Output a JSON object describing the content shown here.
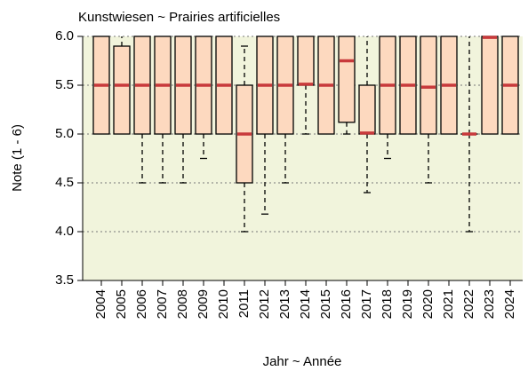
{
  "chart_data": {
    "type": "box",
    "title": "Kunstwiesen   ~   Prairies artificielles",
    "x_label": "Jahr   ~   Année",
    "y_label": "Note (1 - 6)",
    "categories": [
      "2004",
      "2005",
      "2006",
      "2007",
      "2008",
      "2009",
      "2010",
      "2011",
      "2012",
      "2013",
      "2014",
      "2015",
      "2016",
      "2017",
      "2018",
      "2019",
      "2020",
      "2021",
      "2022",
      "2023",
      "2024"
    ],
    "series": {
      "low": [
        5.0,
        5.0,
        4.5,
        4.5,
        4.5,
        4.75,
        5.0,
        4.0,
        4.18,
        4.5,
        5.0,
        5.0,
        5.0,
        4.4,
        4.75,
        5.0,
        4.5,
        5.0,
        4.0,
        5.0,
        5.0
      ],
      "q1": [
        5.0,
        5.0,
        5.0,
        5.0,
        5.0,
        5.0,
        5.0,
        4.5,
        5.0,
        5.0,
        5.5,
        5.0,
        5.12,
        5.0,
        5.0,
        5.0,
        5.0,
        5.0,
        5.0,
        5.0,
        5.0
      ],
      "median": [
        5.5,
        5.5,
        5.5,
        5.5,
        5.5,
        5.5,
        5.5,
        5.0,
        5.5,
        5.5,
        5.51,
        5.5,
        5.75,
        5.01,
        5.5,
        5.5,
        5.48,
        5.5,
        5.0,
        5.99,
        5.5
      ],
      "q3": [
        6.0,
        5.9,
        6.0,
        6.0,
        6.0,
        6.0,
        6.0,
        5.5,
        6.0,
        6.0,
        6.0,
        6.0,
        6.0,
        5.5,
        6.0,
        6.0,
        6.0,
        6.0,
        5.0,
        6.0,
        6.0
      ],
      "high": [
        6.0,
        6.0,
        6.0,
        6.0,
        6.0,
        6.0,
        6.0,
        5.9,
        6.0,
        6.0,
        6.0,
        6.0,
        6.0,
        6.0,
        6.0,
        6.0,
        6.0,
        6.0,
        6.0,
        6.0,
        6.0
      ]
    },
    "box_color": "#fdd9bf",
    "median_color": "#c8393b",
    "background": "#f1f4dc",
    "ylim": [
      3.5,
      6.0
    ],
    "yticks": [
      {
        "value": 3.5,
        "label": "3.5"
      },
      {
        "value": 4,
        "label": "4.0"
      },
      {
        "value": 4.5,
        "label": "4.5"
      },
      {
        "value": 5,
        "label": "5.0"
      },
      {
        "value": 5.5,
        "label": "5.5"
      },
      {
        "value": 6,
        "label": "6.0"
      }
    ],
    "grid": true
  }
}
